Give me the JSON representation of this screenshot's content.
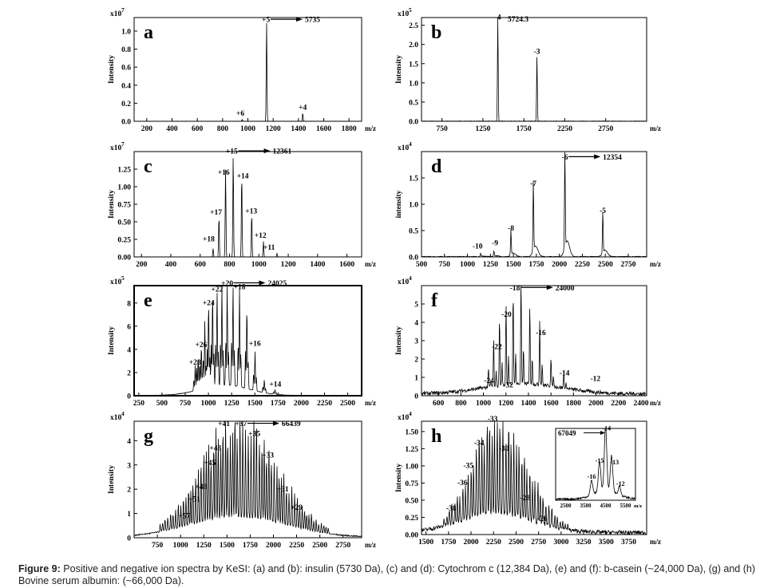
{
  "caption": {
    "label": "Figure 9:",
    "text": "Positive and negative ion spectra by KeSI: (a) and (b): insulin (5730 Da), (c) and (d): Cytochrom c (12,384 Da), (e) and (f): b-casein (~24,000 Da), (g) and (h) Bovine serum albumin: (~66,000 Da)."
  },
  "chart_data": [
    {
      "panel": "a",
      "type": "line",
      "ylabel": "Intensity",
      "xlabel": "m/z",
      "scale": "x10",
      "scale_exp": "7",
      "xlim": [
        100,
        1900
      ],
      "ylim": [
        0,
        1.15
      ],
      "xticks": [
        200,
        400,
        600,
        800,
        1000,
        1200,
        1400,
        1600,
        1800
      ],
      "yticks": [
        "0.0",
        "0.2",
        "0.4",
        "0.6",
        "0.8",
        "1.0"
      ],
      "ytick_values": [
        0,
        0.2,
        0.4,
        0.6,
        0.8,
        1.0
      ],
      "noise": 0,
      "peaks": [
        [
          955,
          0.02
        ],
        [
          1148,
          1.1
        ],
        [
          1434,
          0.09
        ]
      ],
      "labels": [
        {
          "text": "+6",
          "x": 940,
          "y": 0.06
        },
        {
          "text": "+5",
          "x": 1143,
          "y": 1.1
        },
        {
          "text": "+4",
          "x": 1434,
          "y": 0.13
        }
      ],
      "arrow": {
        "x": 1180,
        "y": 1.1,
        "text": "5735"
      }
    },
    {
      "panel": "b",
      "type": "line",
      "ylabel": "Intensity",
      "xlabel": "m/z",
      "scale": "x10",
      "scale_exp": "5",
      "xlim": [
        500,
        3250
      ],
      "ylim": [
        0,
        2.7
      ],
      "xticks": [
        750,
        1250,
        1750,
        2250,
        2750
      ],
      "yticks": [
        "0.0",
        "0.5",
        "1.0",
        "1.5",
        "2.0",
        "2.5"
      ],
      "ytick_values": [
        0,
        0.5,
        1.0,
        1.5,
        2.0,
        2.5
      ],
      "noise": 0.01,
      "peaks": [
        [
          1432,
          2.7
        ],
        [
          1910,
          1.7
        ]
      ],
      "labels": [
        {
          "text": "-4",
          "x": 1432,
          "y": 2.65
        },
        {
          "text": "-3",
          "x": 1910,
          "y": 1.75
        },
        {
          "text": "5724.3",
          "x": 1680,
          "y": 2.6
        }
      ]
    },
    {
      "panel": "c",
      "type": "line",
      "ylabel": "Intensity",
      "xlabel": "m/z",
      "scale": "x10",
      "scale_exp": "7",
      "xlim": [
        150,
        1700
      ],
      "ylim": [
        0,
        1.5
      ],
      "xticks": [
        200,
        400,
        600,
        800,
        1000,
        1200,
        1400,
        1600
      ],
      "yticks": [
        "0.00",
        "0.25",
        "0.50",
        "0.75",
        "1.00",
        "1.25"
      ],
      "ytick_values": [
        0,
        0.25,
        0.5,
        0.75,
        1.0,
        1.25
      ],
      "noise": 0,
      "peaks": [
        [
          688,
          0.12
        ],
        [
          728,
          0.58
        ],
        [
          773,
          1.25
        ],
        [
          825,
          1.45
        ],
        [
          883,
          1.18
        ],
        [
          951,
          0.62
        ],
        [
          1031,
          0.22
        ],
        [
          1124,
          0.05
        ]
      ],
      "labels": [
        {
          "text": "+18",
          "x": 658,
          "y": 0.22
        },
        {
          "text": "+17",
          "x": 708,
          "y": 0.6
        },
        {
          "text": "+16",
          "x": 760,
          "y": 1.17
        },
        {
          "text": "+15",
          "x": 815,
          "y": 1.47
        },
        {
          "text": "+14",
          "x": 890,
          "y": 1.12
        },
        {
          "text": "+13",
          "x": 948,
          "y": 0.62
        },
        {
          "text": "+12",
          "x": 1010,
          "y": 0.27
        },
        {
          "text": "+11",
          "x": 1070,
          "y": 0.1
        }
      ],
      "arrow": {
        "x": 860,
        "y": 1.47,
        "text": "12361"
      }
    },
    {
      "panel": "d",
      "type": "line",
      "ylabel": "intensity",
      "xlabel": "m/z",
      "scale": "x10",
      "scale_exp": "4",
      "xlim": [
        500,
        2950
      ],
      "ylim": [
        0,
        2.0
      ],
      "xticks": [
        500,
        750,
        1000,
        1250,
        1500,
        1750,
        2000,
        2250,
        2500,
        2750
      ],
      "yticks": [
        "0.0",
        "0.5",
        "1.0",
        "1.5"
      ],
      "ytick_values": [
        0,
        0.5,
        1.0,
        1.5
      ],
      "noise": 0.015,
      "peaks": [
        [
          1143,
          0.06
        ],
        [
          1288,
          0.1
        ],
        [
          1473,
          0.46
        ],
        [
          1717,
          1.32
        ],
        [
          2060,
          1.98
        ],
        [
          2473,
          0.8
        ]
      ],
      "labels": [
        {
          "text": "-10",
          "x": 1110,
          "y": 0.16
        },
        {
          "text": "-9",
          "x": 1300,
          "y": 0.22
        },
        {
          "text": "-8",
          "x": 1473,
          "y": 0.5
        },
        {
          "text": "-7",
          "x": 1717,
          "y": 1.35
        },
        {
          "text": "-6",
          "x": 2060,
          "y": 1.85
        },
        {
          "text": "-5",
          "x": 2473,
          "y": 0.83
        }
      ],
      "arrow": {
        "x": 2100,
        "y": 1.85,
        "text": "12354"
      }
    },
    {
      "panel": "e",
      "type": "line",
      "ylabel": "Intensity",
      "xlabel": "m/z",
      "scale": "x10",
      "scale_exp": "5",
      "xlim": [
        200,
        2650
      ],
      "ylim": [
        0,
        9.5
      ],
      "xticks": [
        250,
        500,
        750,
        1000,
        1250,
        1500,
        1750,
        2000,
        2250,
        2500
      ],
      "yticks": [
        "0",
        "2",
        "4",
        "6",
        "8"
      ],
      "ytick_values": [
        0,
        2,
        4,
        6,
        8
      ],
      "noise": 0.05,
      "peaks": [
        [
          858,
          2.2
        ],
        [
          890,
          3.0
        ],
        [
          924,
          3.8
        ],
        [
          961,
          5.8
        ],
        [
          1002,
          7.4
        ],
        [
          1045,
          8.1
        ],
        [
          1093,
          8.3
        ],
        [
          1145,
          8.6
        ],
        [
          1202,
          8.9
        ],
        [
          1265,
          8.7
        ],
        [
          1335,
          8.5
        ],
        [
          1414,
          7.1
        ],
        [
          1502,
          3.4
        ],
        [
          1602,
          1.1
        ],
        [
          1717,
          0.4
        ]
      ],
      "labels": [
        {
          "text": "+28",
          "x": 855,
          "y": 2.7
        },
        {
          "text": "+26",
          "x": 922,
          "y": 4.2
        },
        {
          "text": "+24",
          "x": 1001,
          "y": 7.8
        },
        {
          "text": "+22",
          "x": 1093,
          "y": 9.0
        },
        {
          "text": "+20",
          "x": 1202,
          "y": 9.5
        },
        {
          "text": "+18",
          "x": 1335,
          "y": 9.2
        },
        {
          "text": "+16",
          "x": 1500,
          "y": 4.3
        },
        {
          "text": "+14",
          "x": 1720,
          "y": 0.8
        }
      ],
      "arrow": {
        "x": 1270,
        "y": 9.5,
        "text": "24025"
      }
    },
    {
      "panel": "f",
      "type": "line",
      "ylabel": "Intensity",
      "xlabel": "m/z",
      "scale": "x10",
      "scale_exp": "4",
      "xlim": [
        450,
        2450
      ],
      "ylim": [
        0,
        6.0
      ],
      "xticks": [
        600,
        800,
        1000,
        1200,
        1400,
        1600,
        1800,
        2000,
        2200,
        2400
      ],
      "yticks": [
        "0",
        "1",
        "2",
        "3",
        "4",
        "5"
      ],
      "ytick_values": [
        0,
        1,
        2,
        3,
        4,
        5
      ],
      "noise": 0.2,
      "peaks": [
        [
          1044,
          1.0
        ],
        [
          1091,
          2.5
        ],
        [
          1143,
          3.7
        ],
        [
          1201,
          4.5
        ],
        [
          1264,
          5.1
        ],
        [
          1334,
          5.8
        ],
        [
          1412,
          4.4
        ],
        [
          1500,
          3.5
        ],
        [
          1600,
          1.6
        ],
        [
          1714,
          0.85
        ]
      ],
      "labels": [
        {
          "text": "-24",
          "x": 1050,
          "y": 0.7
        },
        {
          "text": "-22",
          "x": 1120,
          "y": 2.55
        },
        {
          "text": "-20",
          "x": 1205,
          "y": 4.3
        },
        {
          "text": "-18",
          "x": 1280,
          "y": 5.75
        },
        {
          "text": "-16",
          "x": 1510,
          "y": 3.3
        },
        {
          "text": "-14",
          "x": 1720,
          "y": 1.1
        },
        {
          "text": "-12",
          "x": 1995,
          "y": 0.8
        },
        {
          "text": "-32",
          "x": 1220,
          "y": 0.45
        }
      ],
      "arrow": {
        "x": 1335,
        "y": 5.75,
        "text": "24000"
      }
    },
    {
      "panel": "g",
      "type": "line",
      "ylabel": "Intensity",
      "xlabel": "m/z",
      "scale": "x10",
      "scale_exp": "4",
      "xlim": [
        500,
        2950
      ],
      "ylim": [
        0,
        4.8
      ],
      "xticks": [
        750,
        1000,
        1250,
        1500,
        1750,
        2000,
        2250,
        2500,
        2750
      ],
      "yticks": [
        "0",
        "1",
        "2",
        "3",
        "4"
      ],
      "ytick_values": [
        0,
        1,
        2,
        3,
        4
      ],
      "noise": 0.06,
      "envelope": {
        "start": 780,
        "center": 1620,
        "end": 2600,
        "height": 4.6,
        "spacing": 27
      },
      "labels": [
        {
          "text": "+57",
          "x": 1040,
          "y": 0.8
        },
        {
          "text": "+51",
          "x": 1150,
          "y": 1.5
        },
        {
          "text": "+48",
          "x": 1220,
          "y": 2.0
        },
        {
          "text": "+45",
          "x": 1315,
          "y": 3.0
        },
        {
          "text": "+43",
          "x": 1375,
          "y": 3.6
        },
        {
          "text": "+41",
          "x": 1468,
          "y": 4.6
        },
        {
          "text": "+37",
          "x": 1650,
          "y": 4.6
        },
        {
          "text": "+35",
          "x": 1795,
          "y": 4.2
        },
        {
          "text": "+33",
          "x": 1940,
          "y": 3.3
        },
        {
          "text": "+31",
          "x": 2100,
          "y": 1.9
        },
        {
          "text": "+29",
          "x": 2250,
          "y": 1.15
        }
      ],
      "arrow": {
        "x": 1720,
        "y": 4.6,
        "text": "66439"
      }
    },
    {
      "panel": "h",
      "type": "line",
      "ylabel": "Intensity",
      "xlabel": "m/z",
      "scale": "x10",
      "scale_exp": "4",
      "xlim": [
        1450,
        3950
      ],
      "ylim": [
        0,
        1.65
      ],
      "xticks": [
        1500,
        1750,
        2000,
        2250,
        2500,
        2750,
        3000,
        3250,
        3500,
        3750
      ],
      "yticks": [
        "0.00",
        "0.25",
        "0.50",
        "0.75",
        "1.00",
        "1.25",
        "1.50"
      ],
      "ytick_values": [
        0,
        0.25,
        0.5,
        0.75,
        1.0,
        1.25,
        1.5
      ],
      "noise": 0.06,
      "envelope": {
        "start": 1700,
        "center": 2280,
        "end": 3100,
        "height": 1.55,
        "spacing": 30
      },
      "labels": [
        {
          "text": "-38",
          "x": 1780,
          "y": 0.35
        },
        {
          "text": "-36",
          "x": 1905,
          "y": 0.72
        },
        {
          "text": "-35",
          "x": 1970,
          "y": 0.97
        },
        {
          "text": "-34",
          "x": 2090,
          "y": 1.3
        },
        {
          "text": "-33",
          "x": 2240,
          "y": 1.65
        },
        {
          "text": "-30",
          "x": 2365,
          "y": 1.22
        },
        {
          "text": "-28",
          "x": 2600,
          "y": 0.5
        },
        {
          "text": "-26",
          "x": 2790,
          "y": 0.2
        }
      ],
      "inset": {
        "xlim": [
          2000,
          6000
        ],
        "ylim": [
          0,
          1.0
        ],
        "xticks": [
          2500,
          3500,
          4500,
          5500
        ],
        "peaks": [
          [
            3800,
            0.2
          ],
          [
            4200,
            0.42
          ],
          [
            4500,
            0.9
          ],
          [
            4800,
            0.5
          ],
          [
            5200,
            0.12
          ]
        ],
        "labels": [
          {
            "text": "-16",
            "x": 3800,
            "y": 0.3
          },
          {
            "text": "-15",
            "x": 4200,
            "y": 0.52
          },
          {
            "text": "-14",
            "x": 4550,
            "y": 0.97
          },
          {
            "text": "-13",
            "x": 4950,
            "y": 0.5
          },
          {
            "text": "-12",
            "x": 5250,
            "y": 0.2
          }
        ],
        "arrow_text": "67049"
      }
    }
  ]
}
